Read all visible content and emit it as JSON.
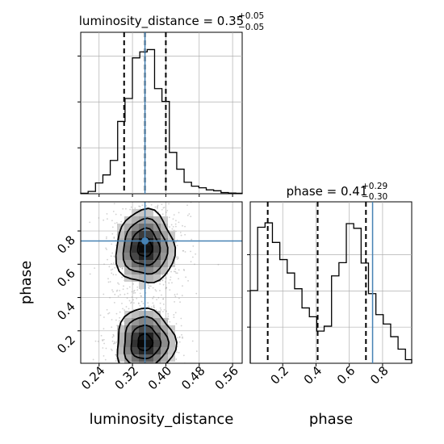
{
  "chart_data": [
    {
      "type": "histogram",
      "panel": "luminosity_distance marginal",
      "title_main": "luminosity_distance = 0.35",
      "title_sup": "+0.05",
      "title_sub": "−0.05",
      "xlim": [
        0.196,
        0.583
      ],
      "bin_edges": [
        0.196,
        0.2137,
        0.2314,
        0.2491,
        0.2668,
        0.2845,
        0.3022,
        0.3199,
        0.3376,
        0.3553,
        0.373,
        0.3907,
        0.4084,
        0.4261,
        0.4438,
        0.4615,
        0.4792,
        0.4969,
        0.5146,
        0.5323,
        0.55,
        0.5677,
        0.583
      ],
      "counts": [
        2,
        10,
        47,
        82,
        145,
        315,
        415,
        592,
        618,
        628,
        458,
        402,
        180,
        107,
        50,
        33,
        26,
        17,
        13,
        5,
        3,
        2
      ],
      "quantiles": [
        0.3,
        0.35,
        0.4
      ],
      "truth": 0.35
    },
    {
      "type": "heatmap",
      "panel": "luminosity_distance vs phase 2D posterior",
      "xlabel": "luminosity_distance",
      "ylabel": "phase",
      "xlim": [
        0.196,
        0.583
      ],
      "ylim": [
        0.005,
        0.975
      ],
      "x_ticks": [
        "0.24",
        "0.32",
        "0.40",
        "0.48",
        "0.56"
      ],
      "x_tick_values": [
        0.24,
        0.32,
        0.4,
        0.48,
        0.56
      ],
      "y_ticks": [
        "0.2",
        "0.4",
        "0.6",
        "0.8"
      ],
      "y_tick_values": [
        0.2,
        0.4,
        0.6,
        0.8
      ],
      "modes": [
        {
          "center": [
            0.35,
            0.7
          ],
          "spread": [
            0.035,
            0.11
          ]
        },
        {
          "center": [
            0.35,
            0.13
          ],
          "spread": [
            0.035,
            0.1
          ]
        }
      ],
      "truth": [
        0.35,
        0.74
      ]
    },
    {
      "type": "histogram",
      "panel": "phase marginal",
      "title_main": "phase = 0.41",
      "title_sup": "+0.29",
      "title_sub": "−0.30",
      "xlim": [
        0.005,
        0.975
      ],
      "x_ticks": [
        "0.2",
        "0.4",
        "0.6",
        "0.8"
      ],
      "x_tick_values": [
        0.2,
        0.4,
        0.6,
        0.8
      ],
      "xlabel": "phase",
      "bin_edges": [
        0.005,
        0.0494,
        0.0938,
        0.1382,
        0.1826,
        0.227,
        0.2714,
        0.3158,
        0.3602,
        0.4046,
        0.449,
        0.4934,
        0.5378,
        0.5822,
        0.6266,
        0.671,
        0.7154,
        0.7598,
        0.8042,
        0.8486,
        0.893,
        0.9374,
        0.975
      ],
      "counts": [
        402,
        752,
        776,
        668,
        573,
        499,
        412,
        306,
        257,
        178,
        205,
        483,
        556,
        772,
        746,
        554,
        385,
        269,
        217,
        147,
        78,
        20
      ],
      "quantiles": [
        0.11,
        0.41,
        0.7
      ],
      "truth": 0.74
    }
  ]
}
